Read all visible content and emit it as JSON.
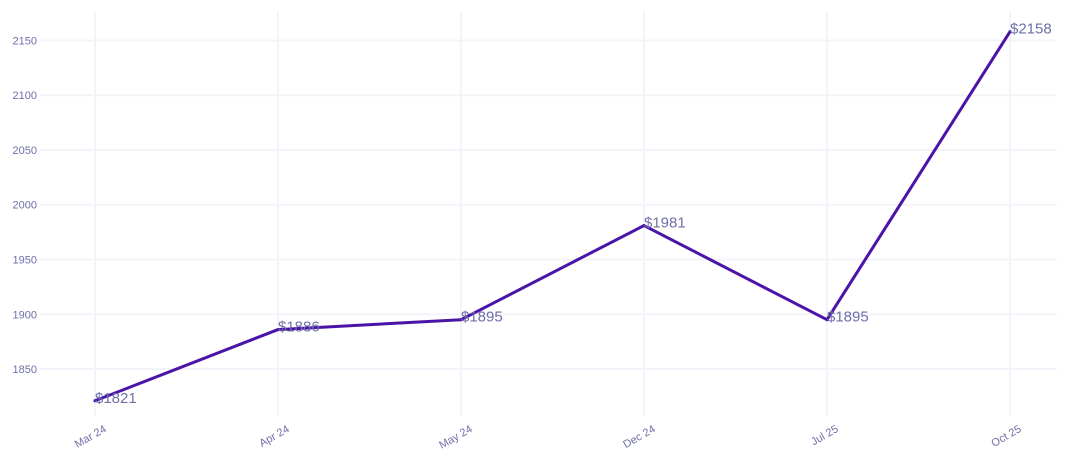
{
  "chart_data": {
    "type": "line",
    "title": "",
    "xlabel": "",
    "ylabel": "",
    "categories": [
      "Mar 24",
      "Apr 24",
      "May 24",
      "Dec 24",
      "Jul 25",
      "Oct 25"
    ],
    "series": [
      {
        "values": [
          1821,
          1886,
          1895,
          1981,
          1895,
          2158
        ],
        "data_labels": [
          "$1821",
          "$1886",
          "$1895",
          "$1981",
          "$1895",
          "$2158"
        ]
      }
    ],
    "y_ticks": [
      1850,
      1900,
      1950,
      2000,
      2050,
      2100,
      2150
    ],
    "ylim": [
      1808,
      2176
    ],
    "grid": true,
    "legend": "none"
  },
  "colors": {
    "line": "#4b14a8",
    "text": "#6f6fa8",
    "grid": "#f4f3fa"
  }
}
